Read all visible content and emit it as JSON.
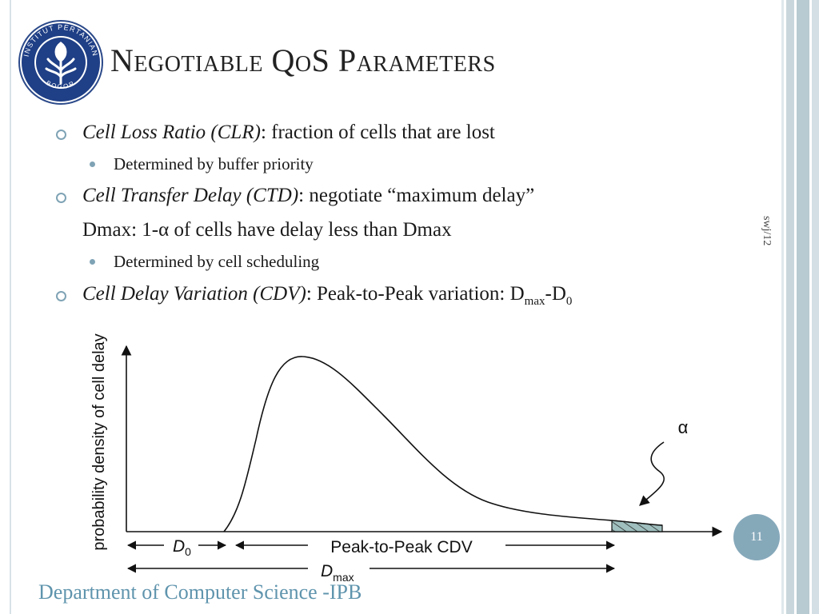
{
  "title": "Negotiable QoS Parameters",
  "bullets": [
    {
      "term": "Cell Loss Ratio (CLR)",
      "text": ": fraction of cells that are lost"
    },
    {
      "sub": "Determined by buffer priority"
    },
    {
      "term": "Cell Transfer Delay (CTD)",
      "text": ":  negotiate “maximum delay”"
    },
    {
      "line": "Dmax:   1-α of cells have delay less than Dmax"
    },
    {
      "sub": "Determined by cell scheduling"
    },
    {
      "term": "Cell Delay Variation (CDV)",
      "text": ":  Peak-to-Peak variation:  D",
      "sub1": "max",
      "mid": "-D",
      "sub2": "0"
    }
  ],
  "side_note": "swj/12",
  "slide_number": "11",
  "footer": "Department of Computer Science -IPB",
  "diagram": {
    "y_axis_label": "probability density of cell delay",
    "alpha_label": "α",
    "d0_label": "D",
    "d0_sub": "0",
    "cdv_label": "Peak-to-Peak CDV",
    "dmax_label": "D",
    "dmax_sub": "max"
  },
  "colors": {
    "accent": "#86a9ba",
    "bullet": "#7fa3b5",
    "footer": "#5f94ad",
    "tail_fill": "#9fbfbe"
  }
}
